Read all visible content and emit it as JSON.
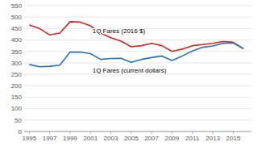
{
  "chart_data": {
    "type": "line",
    "x": [
      1995,
      1996,
      1997,
      1998,
      1999,
      2000,
      2001,
      2002,
      2003,
      2004,
      2005,
      2006,
      2007,
      2008,
      2009,
      2010,
      2011,
      2012,
      2013,
      2014,
      2015,
      2016
    ],
    "series": [
      {
        "color": "#d9241a",
        "values": [
          465,
          450,
          422,
          430,
          480,
          478,
          462,
          430,
          410,
          395,
          370,
          375,
          385,
          375,
          350,
          360,
          375,
          380,
          385,
          393,
          390,
          362
        ]
      },
      {
        "color": "#2472b9",
        "values": [
          293,
          283,
          285,
          290,
          347,
          347,
          340,
          315,
          319,
          320,
          302,
          315,
          323,
          330,
          310,
          330,
          352,
          368,
          374,
          385,
          387,
          362
        ]
      }
    ],
    "annotations": [
      {
        "text": "1Q Fares (2016 $)",
        "x": 2001.2,
        "y": 430
      },
      {
        "text": "1Q Fares (current dollars)",
        "x": 2001.2,
        "y": 258
      }
    ],
    "xlim": [
      1994.5,
      2016.8
    ],
    "xticks": [
      1995,
      1997,
      1999,
      2001,
      2003,
      2005,
      2007,
      2009,
      2011,
      2013,
      2015
    ],
    "ylim": [
      0,
      550
    ],
    "yticks": [
      0,
      50,
      100,
      150,
      200,
      250,
      300,
      350,
      400,
      450,
      500,
      550
    ],
    "grid": true
  }
}
